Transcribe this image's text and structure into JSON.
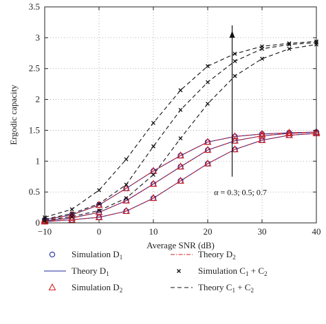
{
  "chart_data": {
    "type": "line",
    "xlabel": "Average SNR (dB)",
    "ylabel": "Ergodic capacity",
    "xlim": [
      -10,
      40
    ],
    "ylim": [
      0,
      3.5
    ],
    "xticks": [
      -10,
      0,
      10,
      20,
      30,
      40
    ],
    "yticks": [
      0,
      0.5,
      1,
      1.5,
      2,
      2.5,
      3,
      3.5
    ],
    "grid": "dotted",
    "legend_position": "bottom",
    "annotation": "α = 0.3; 0.5; 0.7",
    "x": [
      -10,
      -5,
      0,
      5,
      10,
      15,
      20,
      25,
      30,
      35,
      40
    ],
    "series": [
      {
        "name": "Simulation D1",
        "group": 0,
        "style": "circle",
        "values": [
          0.02,
          0.05,
          0.09,
          0.19,
          0.4,
          0.68,
          0.96,
          1.19,
          1.34,
          1.42,
          1.45
        ]
      },
      {
        "name": "Simulation D1",
        "group": 1,
        "style": "circle",
        "values": [
          0.03,
          0.08,
          0.17,
          0.36,
          0.63,
          0.91,
          1.18,
          1.33,
          1.41,
          1.45,
          1.47
        ]
      },
      {
        "name": "Simulation D1",
        "group": 2,
        "style": "circle",
        "values": [
          0.05,
          0.13,
          0.29,
          0.56,
          0.84,
          1.09,
          1.31,
          1.4,
          1.44,
          1.46,
          1.47
        ]
      },
      {
        "name": "Theory D1",
        "group": 0,
        "style": "solid",
        "values": [
          0.02,
          0.05,
          0.09,
          0.19,
          0.4,
          0.68,
          0.96,
          1.19,
          1.34,
          1.42,
          1.45
        ]
      },
      {
        "name": "Theory D1",
        "group": 1,
        "style": "solid",
        "values": [
          0.03,
          0.08,
          0.17,
          0.36,
          0.63,
          0.91,
          1.18,
          1.33,
          1.41,
          1.45,
          1.47
        ]
      },
      {
        "name": "Theory D1",
        "group": 2,
        "style": "solid",
        "values": [
          0.05,
          0.13,
          0.29,
          0.56,
          0.84,
          1.09,
          1.31,
          1.4,
          1.44,
          1.46,
          1.47
        ]
      },
      {
        "name": "Simulation D2",
        "group": 0,
        "style": "triangle",
        "values": [
          0.02,
          0.05,
          0.09,
          0.19,
          0.4,
          0.68,
          0.96,
          1.19,
          1.34,
          1.42,
          1.45
        ]
      },
      {
        "name": "Simulation D2",
        "group": 1,
        "style": "triangle",
        "values": [
          0.03,
          0.08,
          0.17,
          0.36,
          0.63,
          0.91,
          1.18,
          1.33,
          1.41,
          1.45,
          1.47
        ]
      },
      {
        "name": "Simulation D2",
        "group": 2,
        "style": "triangle",
        "values": [
          0.05,
          0.13,
          0.29,
          0.56,
          0.84,
          1.09,
          1.31,
          1.4,
          1.44,
          1.46,
          1.47
        ]
      },
      {
        "name": "Theory D2",
        "group": 0,
        "style": "dashdot",
        "values": [
          0.02,
          0.05,
          0.09,
          0.19,
          0.4,
          0.68,
          0.96,
          1.19,
          1.34,
          1.42,
          1.45
        ]
      },
      {
        "name": "Theory D2",
        "group": 1,
        "style": "dashdot",
        "values": [
          0.03,
          0.08,
          0.17,
          0.36,
          0.63,
          0.91,
          1.18,
          1.33,
          1.41,
          1.45,
          1.47
        ]
      },
      {
        "name": "Theory D2",
        "group": 2,
        "style": "dashdot",
        "values": [
          0.05,
          0.13,
          0.29,
          0.56,
          0.84,
          1.09,
          1.31,
          1.4,
          1.44,
          1.46,
          1.47
        ]
      },
      {
        "name": "Simulation C1 + C2",
        "group": 0,
        "style": "cross",
        "values": [
          0.04,
          0.1,
          0.2,
          0.4,
          0.78,
          1.37,
          1.93,
          2.38,
          2.66,
          2.82,
          2.89
        ]
      },
      {
        "name": "Simulation C1 + C2",
        "group": 1,
        "style": "cross",
        "values": [
          0.06,
          0.15,
          0.31,
          0.62,
          1.24,
          1.83,
          2.28,
          2.62,
          2.82,
          2.89,
          2.92
        ]
      },
      {
        "name": "Simulation C1 + C2",
        "group": 2,
        "style": "cross",
        "values": [
          0.09,
          0.22,
          0.53,
          1.03,
          1.62,
          2.15,
          2.54,
          2.74,
          2.86,
          2.91,
          2.94
        ]
      },
      {
        "name": "Theory C1 + C2",
        "group": 0,
        "style": "dashed",
        "values": [
          0.04,
          0.1,
          0.2,
          0.4,
          0.78,
          1.37,
          1.93,
          2.38,
          2.66,
          2.82,
          2.89
        ]
      },
      {
        "name": "Theory C1 + C2",
        "group": 1,
        "style": "dashed",
        "values": [
          0.06,
          0.15,
          0.31,
          0.62,
          1.24,
          1.83,
          2.28,
          2.62,
          2.82,
          2.89,
          2.92
        ]
      },
      {
        "name": "Theory C1 + C2",
        "group": 2,
        "style": "dashed",
        "values": [
          0.09,
          0.22,
          0.53,
          1.03,
          1.62,
          2.15,
          2.54,
          2.74,
          2.86,
          2.91,
          2.94
        ]
      }
    ],
    "legend": [
      {
        "base": "Simulation D",
        "sub": "1",
        "style": "circle"
      },
      {
        "base": "Theory D",
        "sub": "2",
        "style": "dashdot"
      },
      {
        "base": "Theory D",
        "sub": "1",
        "style": "solid"
      },
      {
        "base": "Simulation C",
        "sub": "1",
        "mid": " + C",
        "sub2": "2",
        "style": "cross"
      },
      {
        "base": "Simulation D",
        "sub": "2",
        "style": "triangle"
      },
      {
        "base": "Theory C",
        "sub": "1",
        "mid": " + C",
        "sub2": "2",
        "style": "dashed"
      }
    ],
    "colors": {
      "axis": "#222222",
      "blue": "#1f2aa0",
      "red": "#d42020",
      "black": "#111111",
      "grid": "#9a9a9a"
    }
  }
}
